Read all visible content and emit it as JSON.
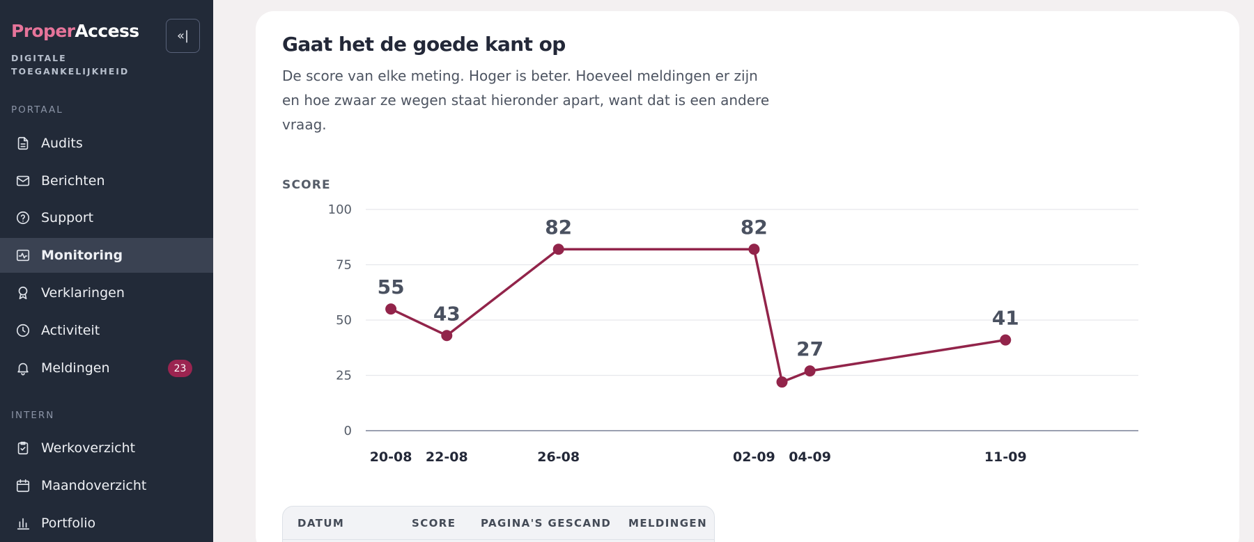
{
  "brand": {
    "part1": "Proper",
    "part2": "Access",
    "subtitle": "DIGITALE TOEGANKELIJKHEID",
    "collapse_label": "«|"
  },
  "sidebar": {
    "section_portal": "PORTAAL",
    "section_intern": "INTERN",
    "portal_items": [
      {
        "label": "Audits",
        "icon": "document-icon"
      },
      {
        "label": "Berichten",
        "icon": "mail-icon"
      },
      {
        "label": "Support",
        "icon": "help-circle-icon"
      },
      {
        "label": "Monitoring",
        "icon": "monitoring-icon",
        "active": true
      },
      {
        "label": "Verklaringen",
        "icon": "award-icon"
      },
      {
        "label": "Activiteit",
        "icon": "clock-icon"
      },
      {
        "label": "Meldingen",
        "icon": "bell-icon",
        "badge": "23"
      }
    ],
    "intern_items": [
      {
        "label": "Werkoverzicht",
        "icon": "clipboard-check-icon"
      },
      {
        "label": "Maandoverzicht",
        "icon": "calendar-icon"
      },
      {
        "label": "Portfolio",
        "icon": "bar-chart-icon"
      }
    ]
  },
  "main": {
    "title": "Gaat het de goede kant op",
    "description": "De score van elke meting. Hoger is beter. Hoeveel meldingen er zijn en hoe zwaar ze wegen staat hieronder apart, want dat is een andere vraag.",
    "table_headers": [
      "DATUM",
      "SCORE",
      "PAGINA'S GESCAND",
      "MELDINGEN"
    ]
  },
  "chart_data": {
    "type": "line",
    "ylabel": "SCORE",
    "ylim": [
      0,
      100
    ],
    "yticks": [
      0,
      25,
      50,
      75,
      100
    ],
    "grid": true,
    "color": "#92244a",
    "points": [
      {
        "date": "2025-08-20",
        "value": 55,
        "label": "55",
        "tick": "20-08"
      },
      {
        "date": "2025-08-22",
        "value": 43,
        "label": "43",
        "tick": "22-08"
      },
      {
        "date": "2025-08-26",
        "value": 82,
        "label": "82",
        "tick": "26-08"
      },
      {
        "date": "2025-09-02",
        "value": 82,
        "label": "82",
        "tick": "02-09"
      },
      {
        "date": "2025-09-03",
        "value": 22,
        "label": "",
        "tick": ""
      },
      {
        "date": "2025-09-04",
        "value": 27,
        "label": "27",
        "tick": "04-09"
      },
      {
        "date": "2025-09-11",
        "value": 41,
        "label": "41",
        "tick": "11-09"
      }
    ]
  }
}
